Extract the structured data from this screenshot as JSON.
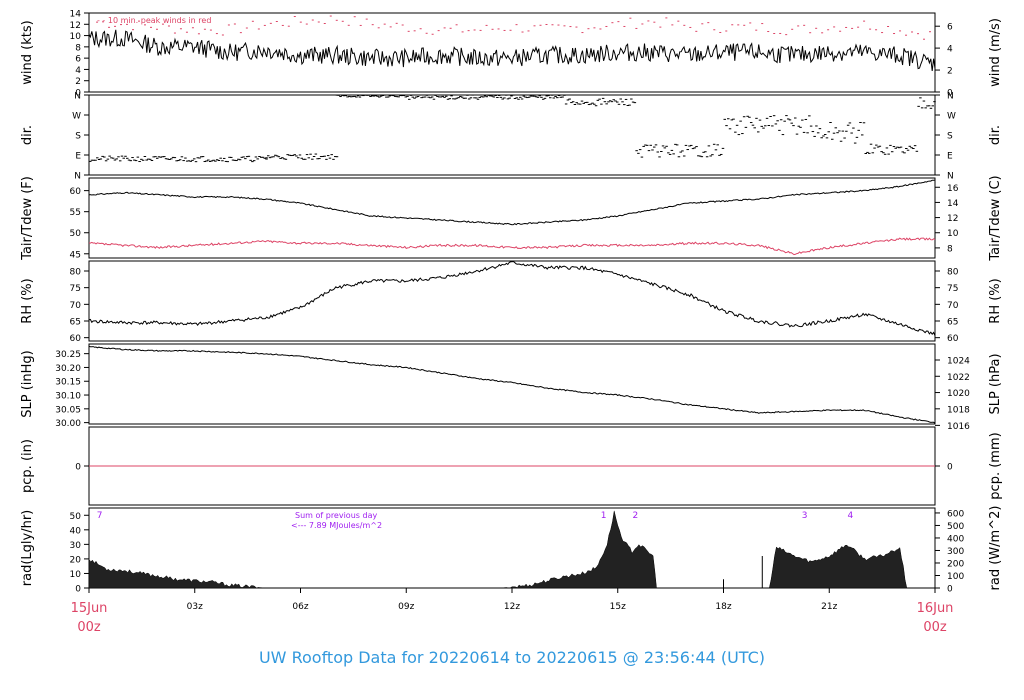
{
  "title": "UW Rooftop Data for 20220614  to  20220615 @ 23:56:44  (UTC)",
  "colors": {
    "accent": "#dd4466",
    "title": "#3399dd",
    "purple": "#a020f0",
    "data": "#000000"
  },
  "chart_data": [
    {
      "type": "line",
      "panel": "wind",
      "ylabel": "wind (kts)",
      "ylabel_right": "wind (m/s)",
      "ylim": [
        0,
        14
      ],
      "yticks": [
        0,
        2,
        4,
        6,
        8,
        10,
        12,
        14
      ],
      "yticks_right": [
        {
          "v": 0,
          "label": "0"
        },
        {
          "v": 3.89,
          "label": "2"
        },
        {
          "v": 7.78,
          "label": "4"
        },
        {
          "v": 11.66,
          "label": "6"
        }
      ],
      "annotation": "- - 10 min. peak winds in red",
      "series": [
        {
          "role": "mean",
          "x": [
            0,
            1,
            2,
            3,
            4,
            5,
            6,
            7,
            8,
            9,
            10,
            11,
            12,
            13,
            14,
            15,
            16,
            17,
            18,
            19,
            20,
            21,
            22,
            23,
            24
          ],
          "values": [
            9.5,
            9.5,
            8,
            8,
            7,
            7.5,
            6.5,
            6.5,
            6,
            6,
            6.5,
            6,
            6,
            6.5,
            6.5,
            7,
            7,
            6.5,
            7,
            7,
            6.5,
            7,
            7,
            6.5,
            5
          ]
        },
        {
          "role": "peak",
          "x": [
            0,
            1,
            2,
            3,
            4,
            5,
            6,
            7,
            8,
            9,
            10,
            11,
            12,
            13,
            14,
            15,
            16,
            17,
            18,
            19,
            20,
            21,
            22,
            23,
            24
          ],
          "values": [
            12.5,
            12,
            11.5,
            11,
            11,
            12,
            12.5,
            13,
            12,
            11.5,
            11,
            11,
            11.5,
            11,
            11.5,
            12,
            12.5,
            11.5,
            11.5,
            11.5,
            11,
            11.5,
            12,
            11,
            10
          ]
        }
      ]
    },
    {
      "type": "scatter",
      "panel": "dir",
      "ylabel": "dir.",
      "ylabel_right": "dir.",
      "ylim": [
        0,
        360
      ],
      "ytick_labels": [
        "N",
        "E",
        "S",
        "W",
        "N"
      ],
      "bands": [
        {
          "x": [
            0,
            5
          ],
          "values": [
            60,
            85
          ]
        },
        {
          "x": [
            5,
            7
          ],
          "values": [
            70,
            95
          ]
        },
        {
          "x": [
            7,
            9
          ],
          "values": [
            350,
            360
          ]
        },
        {
          "x": [
            9,
            13.5
          ],
          "values": [
            340,
            360
          ]
        },
        {
          "x": [
            13.5,
            15.5
          ],
          "values": [
            310,
            345
          ]
        },
        {
          "x": [
            15.5,
            18
          ],
          "values": [
            80,
            140
          ]
        },
        {
          "x": [
            18,
            20.5
          ],
          "values": [
            180,
            270
          ]
        },
        {
          "x": [
            20.5,
            22
          ],
          "values": [
            140,
            240
          ]
        },
        {
          "x": [
            22,
            23.5
          ],
          "values": [
            90,
            140
          ]
        },
        {
          "x": [
            23.5,
            24
          ],
          "values": [
            300,
            360
          ]
        }
      ]
    },
    {
      "type": "line",
      "panel": "temperature",
      "ylabel": "Tair/Tdew (F)",
      "ylabel_right": "Tair/Tdew (C)",
      "ylim": [
        44,
        63
      ],
      "yticks": [
        45,
        50,
        55,
        60
      ],
      "yticks_right": [
        {
          "v": 46.4,
          "label": "8"
        },
        {
          "v": 50,
          "label": "10"
        },
        {
          "v": 53.6,
          "label": "12"
        },
        {
          "v": 57.2,
          "label": "14"
        },
        {
          "v": 60.8,
          "label": "16"
        }
      ],
      "series": [
        {
          "name": "Tair",
          "x": [
            0,
            1,
            2,
            3,
            4,
            5,
            6,
            7,
            8,
            9,
            10,
            11,
            12,
            13,
            14,
            15,
            16,
            17,
            18,
            19,
            20,
            21,
            22,
            23,
            24
          ],
          "values": [
            59,
            59.5,
            59,
            58.5,
            58.5,
            58,
            57,
            55.5,
            54,
            53.5,
            53,
            52.5,
            52,
            52.5,
            53,
            54,
            55.5,
            57,
            57.5,
            58,
            59,
            59.5,
            60,
            61,
            62.5
          ]
        },
        {
          "name": "Tdew",
          "x": [
            0,
            1,
            2,
            3,
            4,
            5,
            6,
            7,
            8,
            9,
            10,
            11,
            12,
            13,
            14,
            15,
            16,
            17,
            18,
            19,
            20,
            21,
            22,
            23,
            24
          ],
          "values": [
            47.5,
            47,
            46.5,
            47,
            47.5,
            48,
            47.5,
            47.5,
            47,
            46.5,
            47,
            47,
            46.5,
            46.5,
            47,
            47,
            47,
            47.5,
            47.5,
            47,
            45,
            46.5,
            47.5,
            48.5,
            48.5
          ]
        }
      ]
    },
    {
      "type": "line",
      "panel": "rh",
      "ylabel": "RH (%)",
      "ylabel_right": "RH (%)",
      "ylim": [
        59,
        83
      ],
      "yticks": [
        60,
        65,
        70,
        75,
        80
      ],
      "yticks_right": [
        {
          "v": 60,
          "label": "60"
        },
        {
          "v": 65,
          "label": "65"
        },
        {
          "v": 70,
          "label": "70"
        },
        {
          "v": 75,
          "label": "75"
        },
        {
          "v": 80,
          "label": "80"
        }
      ],
      "series": [
        {
          "name": "RH",
          "x": [
            0,
            1,
            2,
            3,
            4,
            5,
            6,
            7,
            8,
            9,
            10,
            11,
            12,
            13,
            14,
            15,
            16,
            17,
            18,
            19,
            20,
            21,
            22,
            23,
            24
          ],
          "values": [
            65,
            64.5,
            64.5,
            64,
            65,
            66,
            69,
            75,
            77,
            77,
            78,
            80,
            82.5,
            81,
            81,
            79,
            76,
            73,
            68,
            65,
            63.5,
            65,
            67,
            64,
            61
          ]
        }
      ]
    },
    {
      "type": "line",
      "panel": "slp",
      "ylabel": "SLP (inHg)",
      "ylabel_right": "SLP (hPa)",
      "ylim": [
        29.995,
        30.285
      ],
      "yticks": [
        30.0,
        30.05,
        30.1,
        30.15,
        30.2,
        30.25
      ],
      "ytick_labels": [
        "30.00",
        "30.05",
        "30.10",
        "30.15",
        "30.20",
        "30.25"
      ],
      "yticks_right": [
        {
          "v": 29.99,
          "label": "1016"
        },
        {
          "v": 30.05,
          "label": "1018"
        },
        {
          "v": 30.109,
          "label": "1020"
        },
        {
          "v": 30.168,
          "label": "1022"
        },
        {
          "v": 30.227,
          "label": "1024"
        }
      ],
      "series": [
        {
          "name": "SLP",
          "x": [
            0,
            1,
            2,
            3,
            4,
            5,
            6,
            7,
            8,
            9,
            10,
            11,
            12,
            13,
            14,
            15,
            16,
            17,
            18,
            19,
            20,
            21,
            22,
            23,
            24
          ],
          "values": [
            30.275,
            30.265,
            30.26,
            30.26,
            30.255,
            30.25,
            30.24,
            30.225,
            30.21,
            30.2,
            30.18,
            30.16,
            30.145,
            30.125,
            30.11,
            30.1,
            30.085,
            30.065,
            30.05,
            30.035,
            30.04,
            30.045,
            30.045,
            30.02,
            30.0
          ]
        }
      ]
    },
    {
      "type": "line",
      "panel": "precip",
      "ylabel": "pcp. (in)",
      "ylabel_right": "pcp. (mm)",
      "ylim": [
        -1,
        1
      ],
      "yticks": [
        0
      ],
      "yticks_right": [
        {
          "v": 0,
          "label": "0"
        }
      ],
      "series": [
        {
          "name": "pcp",
          "x": [
            0,
            24
          ],
          "values": [
            0,
            0
          ]
        }
      ]
    },
    {
      "type": "area",
      "panel": "radiation",
      "ylabel": "rad(Lgly/hr)",
      "ylabel_right": "rad (W/m^2)",
      "ylim": [
        0,
        55
      ],
      "yticks": [
        0,
        10,
        20,
        30,
        40,
        50
      ],
      "yticks_right": [
        {
          "v": 0,
          "label": "0"
        },
        {
          "v": 8.6,
          "label": "100"
        },
        {
          "v": 17.2,
          "label": "200"
        },
        {
          "v": 25.8,
          "label": "300"
        },
        {
          "v": 34.4,
          "label": "400"
        },
        {
          "v": 43.0,
          "label": "500"
        },
        {
          "v": 51.6,
          "label": "600"
        }
      ],
      "annotations": [
        "Sum of previous day",
        "<--- 7.89 MJoules/m^2"
      ],
      "markers": [
        {
          "x": 0.3,
          "label": "7"
        },
        {
          "x": 14.6,
          "label": "1"
        },
        {
          "x": 15.5,
          "label": "2"
        },
        {
          "x": 20.3,
          "label": "3"
        },
        {
          "x": 21.6,
          "label": "4"
        }
      ],
      "series": [
        {
          "name": "rad",
          "x": [
            0,
            0.5,
            1,
            1.5,
            2,
            2.5,
            3,
            3.5,
            4,
            4.5,
            5,
            11.7,
            12.5,
            13,
            13.5,
            14,
            14.4,
            14.7,
            14.9,
            15.1,
            15.4,
            15.6,
            15.8,
            16.0,
            16.1,
            18.2,
            19.3,
            19.5,
            20,
            20.5,
            21,
            21.5,
            22,
            22.5,
            23,
            23.2
          ],
          "values": [
            20,
            13,
            12,
            10,
            8,
            6,
            5,
            4,
            2,
            1,
            0,
            0,
            2,
            5,
            8,
            10,
            14,
            30,
            52,
            35,
            25,
            30,
            26,
            22,
            0,
            0,
            0,
            28,
            22,
            18,
            22,
            30,
            20,
            22,
            28,
            0
          ]
        }
      ]
    }
  ],
  "xaxis": {
    "ticks": [
      {
        "x": 0,
        "label": "15Jun",
        "label2": "00z"
      },
      {
        "x": 3,
        "label": "03z"
      },
      {
        "x": 6,
        "label": "06z"
      },
      {
        "x": 9,
        "label": "09z"
      },
      {
        "x": 12,
        "label": "12z"
      },
      {
        "x": 15,
        "label": "15z"
      },
      {
        "x": 18,
        "label": "18z"
      },
      {
        "x": 21,
        "label": "21z"
      },
      {
        "x": 24,
        "label": "16Jun",
        "label2": "00z"
      }
    ]
  }
}
